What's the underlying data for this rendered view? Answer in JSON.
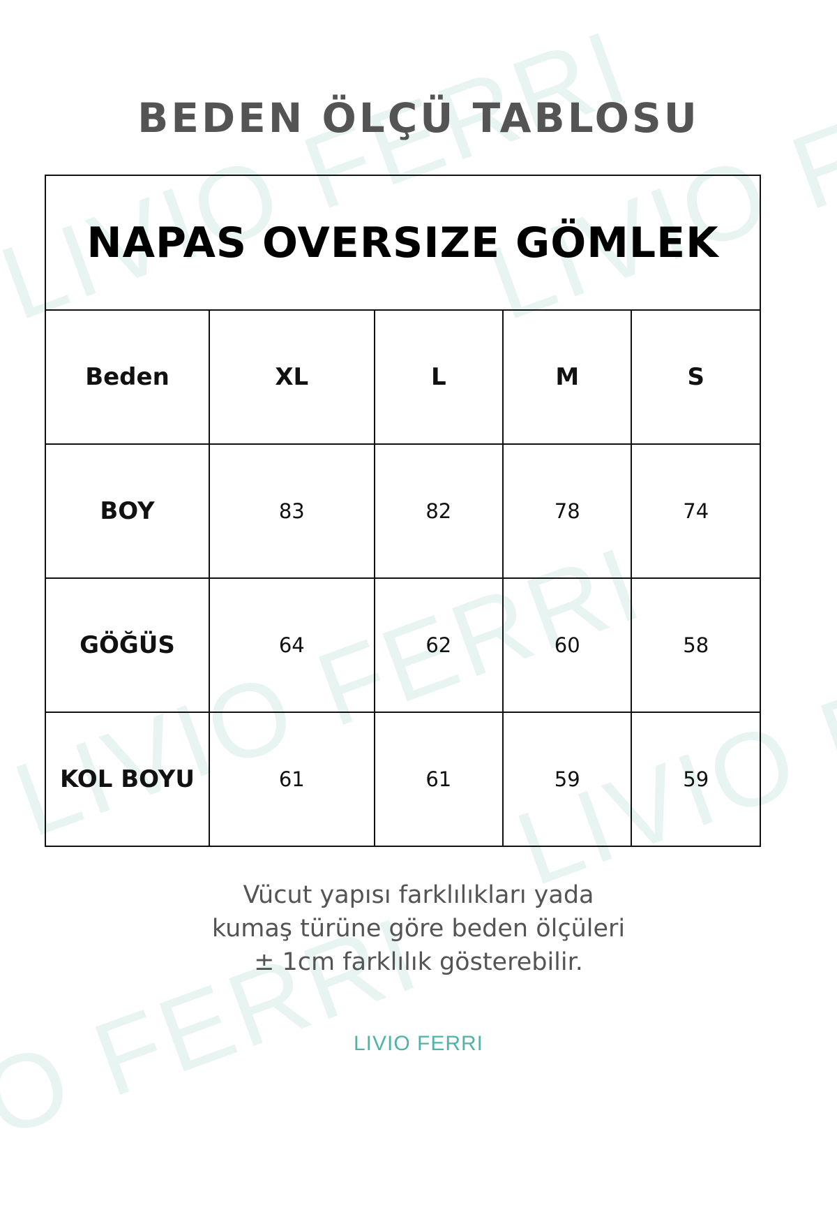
{
  "watermark": "LIVIO FERRI",
  "title": "BEDEN ÖLÇÜ TABLOSU",
  "product": "NAPAS OVERSIZE GÖMLEK",
  "header": {
    "label": "Beden",
    "sizes": [
      "XL",
      "L",
      "M",
      "S"
    ]
  },
  "rows": [
    {
      "label": "BOY",
      "values": [
        "83",
        "82",
        "78",
        "74"
      ]
    },
    {
      "label": "GÖĞÜS",
      "values": [
        "64",
        "62",
        "60",
        "58"
      ]
    },
    {
      "label": "KOL BOYU",
      "values": [
        "61",
        "61",
        "59",
        "59"
      ]
    }
  ],
  "note": "Vücut yapısı farklılıkları yada kumaş türüne göre beden ölçüleri  ± 1cm farklılık gösterebilir.",
  "logo": "LIVIO  FERRI",
  "colors": {
    "brand": "#4fb3a5",
    "title": "#545454"
  }
}
